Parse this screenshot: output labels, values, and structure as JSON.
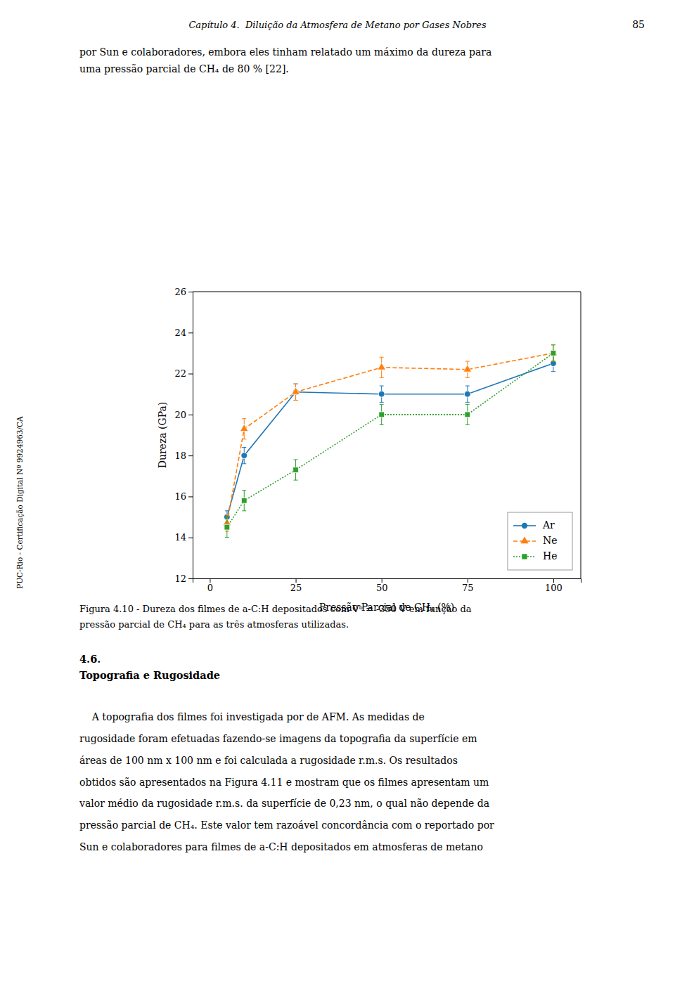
{
  "title_header": "Capítulo 4.  Diluição da Atmosfera de Metano por Gases Nobres",
  "page_number": "85",
  "header_text": [
    "por Sun e colaboradores, embora eles tinham relatado um máximo da dureza para",
    "uma pressão parcial de CH₄ de 80 % [22]."
  ],
  "chart_data": {
    "type": "line",
    "x": [
      5,
      10,
      25,
      50,
      75,
      100
    ],
    "series": [
      {
        "name": "Ar",
        "values": [
          15.0,
          18.0,
          21.1,
          21.0,
          21.0,
          22.5
        ],
        "error": [
          0.3,
          0.4,
          0.4,
          0.4,
          0.4,
          0.4
        ],
        "marker": "circle",
        "line_style": "solid"
      },
      {
        "name": "Ne",
        "values": [
          14.7,
          19.3,
          21.1,
          22.3,
          22.2,
          23.0
        ],
        "error": [
          0.4,
          0.5,
          0.4,
          0.5,
          0.4,
          0.4
        ],
        "marker": "triangle",
        "line_style": "dashed"
      },
      {
        "name": "He",
        "values": [
          14.5,
          15.8,
          17.3,
          20.0,
          20.0,
          23.0
        ],
        "error": [
          0.5,
          0.5,
          0.5,
          0.5,
          0.5,
          0.4
        ],
        "marker": "square",
        "line_style": "dotted"
      }
    ],
    "xlabel": "Pressão Parcial de CH₄ (%)",
    "ylabel": "Dureza (GPa)",
    "xlim": [
      -5,
      108
    ],
    "ylim": [
      12,
      26
    ],
    "xticks": [
      0,
      25,
      50,
      75,
      100
    ],
    "yticks": [
      12,
      14,
      16,
      18,
      20,
      22,
      24,
      26
    ],
    "legend": "lower right",
    "grid": false
  },
  "caption": [
    "Figura 4.10 - Dureza dos filmes de a-C:H depositados com Vᵇ = -350 V em função da",
    "pressão parcial de CH₄ para as três atmosferas utilizadas."
  ],
  "section_num": "4.6.",
  "section_title": "Topografia e Rugosidade",
  "body": [
    "    A topografia dos filmes foi investigada por de AFM. As medidas de",
    "rugosidade foram efetuadas fazendo-se imagens da topografia da superfície em",
    "áreas de 100 nm x 100 nm e foi calculada a rugosidade r.m.s. Os resultados",
    "obtidos são apresentados na Figura 4.11 e mostram que os filmes apresentam um",
    "valor médio da rugosidade r.m.s. da superfície de 0,23 nm, o qual não depende da",
    "pressão parcial de CH₄. Este valor tem razoável concordância com o reportado por",
    "Sun e colaboradores para filmes de a-C:H depositados em atmosferas de metano"
  ],
  "sidebar": "PUC-Rio - Certificação Digital Nº 9924963/CA"
}
